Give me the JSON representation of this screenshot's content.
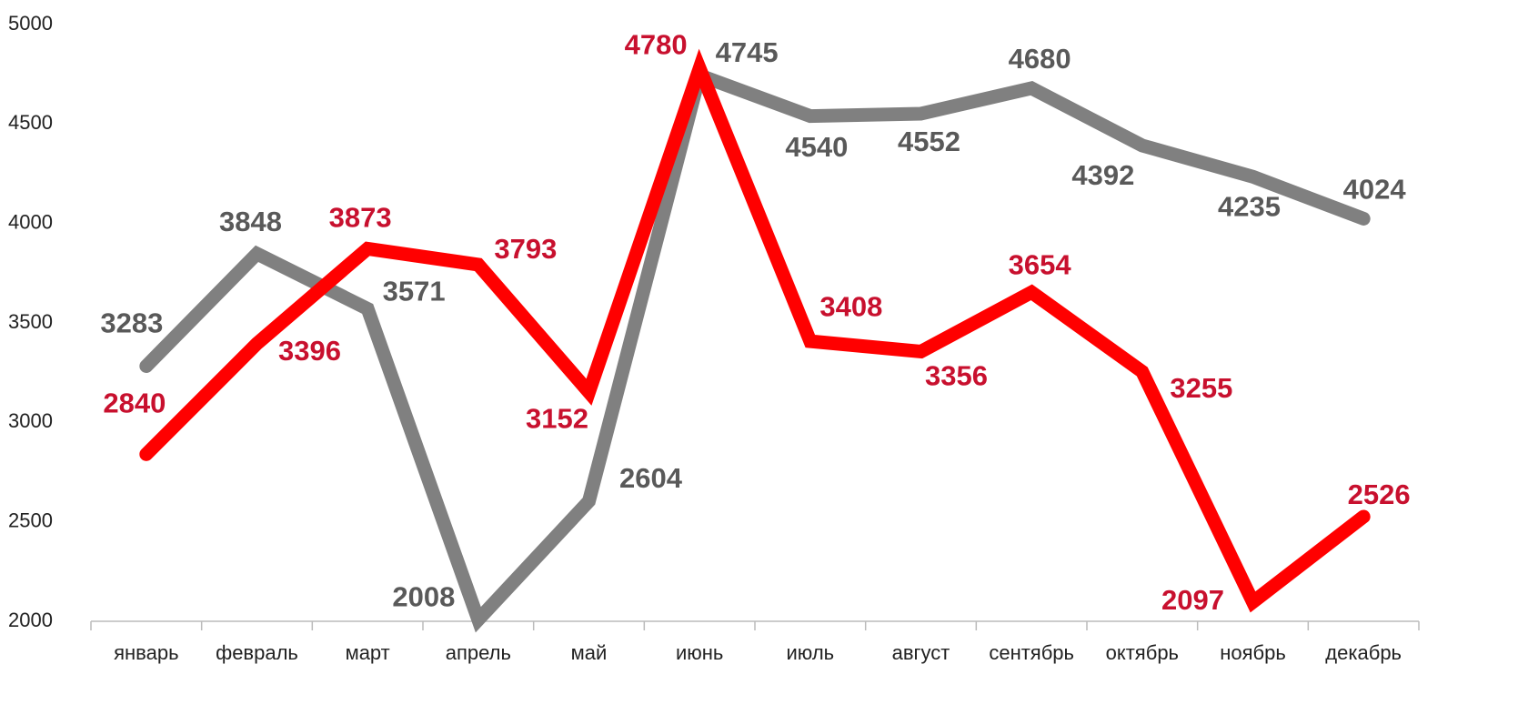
{
  "chart_data": {
    "type": "line",
    "categories": [
      "январь",
      "февраль",
      "март",
      "апрель",
      "май",
      "июнь",
      "июль",
      "август",
      "сентябрь",
      "октябрь",
      "ноябрь",
      "декабрь"
    ],
    "series": [
      {
        "color": "#808080",
        "label_color": "#595959",
        "values": [
          3283,
          3848,
          3571,
          2008,
          2604,
          4745,
          4540,
          4552,
          4680,
          4392,
          4235,
          4024
        ]
      },
      {
        "color": "#ff0000",
        "label_color": "#c8102e",
        "values": [
          2840,
          3396,
          3873,
          3793,
          3152,
          4780,
          3408,
          3356,
          3654,
          3255,
          2097,
          2526
        ]
      }
    ],
    "ylim": [
      2000,
      5000
    ],
    "yticks": [
      2000,
      2500,
      3000,
      3500,
      4000,
      4500,
      5000
    ],
    "grid": false
  }
}
